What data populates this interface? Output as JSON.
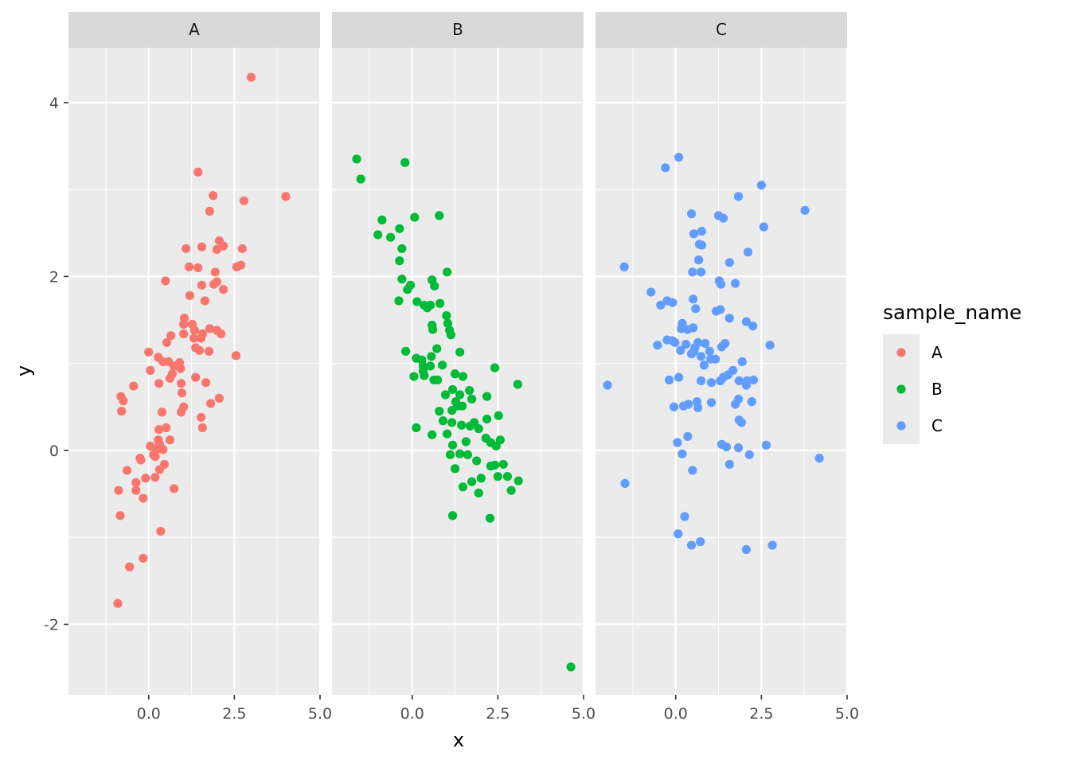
{
  "chart_data": {
    "type": "scatter",
    "xlabel": "x",
    "ylabel": "y",
    "xlim": [
      -2.34,
      5.0
    ],
    "ylim": [
      -2.81,
      4.63
    ],
    "x_ticks": [
      0,
      2.5,
      5
    ],
    "x_tick_labels": [
      "0.0",
      "2.5",
      "5.0"
    ],
    "x_minor_ticks": [
      -1.25,
      1.25,
      3.75
    ],
    "y_ticks": [
      -2,
      0,
      2,
      4
    ],
    "y_tick_labels": [
      "-2",
      "0",
      "2",
      "4"
    ],
    "y_minor_ticks": [
      -1,
      1,
      3
    ],
    "grid": true,
    "legend": {
      "title": "sample_name",
      "position": "right",
      "entries": [
        "A",
        "B",
        "C"
      ]
    },
    "facets": [
      {
        "label": "A",
        "color": "#F8766D",
        "points": [
          [
            2.99,
            4.29
          ],
          [
            4.0,
            2.92
          ],
          [
            1.44,
            3.2
          ],
          [
            1.88,
            2.93
          ],
          [
            2.78,
            2.87
          ],
          [
            1.78,
            2.75
          ],
          [
            2.06,
            2.41
          ],
          [
            2.18,
            2.35
          ],
          [
            2.73,
            2.32
          ],
          [
            1.55,
            2.34
          ],
          [
            1.09,
            2.32
          ],
          [
            1.99,
            2.31
          ],
          [
            1.18,
            2.11
          ],
          [
            1.44,
            2.1
          ],
          [
            2.69,
            2.13
          ],
          [
            2.57,
            2.11
          ],
          [
            1.94,
            2.05
          ],
          [
            0.49,
            1.95
          ],
          [
            1.99,
            1.94
          ],
          [
            1.9,
            1.91
          ],
          [
            1.55,
            1.9
          ],
          [
            2.18,
            1.85
          ],
          [
            1.2,
            1.78
          ],
          [
            1.64,
            1.72
          ],
          [
            1.04,
            1.52
          ],
          [
            1.27,
            1.45
          ],
          [
            1.02,
            1.45
          ],
          [
            1.78,
            1.4
          ],
          [
            1.99,
            1.38
          ],
          [
            0.65,
            1.32
          ],
          [
            1.34,
            1.38
          ],
          [
            1.57,
            1.34
          ],
          [
            2.11,
            1.34
          ],
          [
            1.02,
            1.34
          ],
          [
            1.32,
            1.29
          ],
          [
            1.53,
            1.29
          ],
          [
            0.53,
            1.24
          ],
          [
            1.37,
            1.18
          ],
          [
            1.48,
            1.15
          ],
          [
            1.76,
            1.14
          ],
          [
            0.0,
            1.13
          ],
          [
            2.55,
            1.09
          ],
          [
            0.28,
            1.07
          ],
          [
            0.58,
            1.02
          ],
          [
            0.42,
            1.02
          ],
          [
            0.9,
            1.01
          ],
          [
            0.74,
            0.97
          ],
          [
            0.93,
            0.94
          ],
          [
            0.05,
            0.92
          ],
          [
            0.69,
            0.88
          ],
          [
            0.62,
            0.83
          ],
          [
            1.37,
            0.84
          ],
          [
            -0.44,
            0.74
          ],
          [
            0.3,
            0.77
          ],
          [
            0.95,
            0.77
          ],
          [
            1.67,
            0.78
          ],
          [
            0.97,
            0.66
          ],
          [
            -0.81,
            0.62
          ],
          [
            -0.74,
            0.57
          ],
          [
            2.06,
            0.6
          ],
          [
            1.81,
            0.54
          ],
          [
            -0.79,
            0.45
          ],
          [
            0.39,
            0.44
          ],
          [
            0.95,
            0.44
          ],
          [
            1.02,
            0.5
          ],
          [
            1.53,
            0.38
          ],
          [
            0.3,
            0.24
          ],
          [
            0.51,
            0.26
          ],
          [
            1.57,
            0.26
          ],
          [
            0.62,
            0.12
          ],
          [
            0.28,
            0.12
          ],
          [
            0.32,
            0.07
          ],
          [
            0.05,
            0.05
          ],
          [
            0.42,
            0.01
          ],
          [
            0.21,
            0.0
          ],
          [
            0.14,
            -0.05
          ],
          [
            0.19,
            -0.07
          ],
          [
            -0.25,
            -0.09
          ],
          [
            -0.23,
            -0.11
          ],
          [
            0.46,
            -0.16
          ],
          [
            0.32,
            -0.22
          ],
          [
            -0.63,
            -0.23
          ],
          [
            0.19,
            -0.31
          ],
          [
            -0.09,
            -0.32
          ],
          [
            -0.37,
            -0.37
          ],
          [
            0.74,
            -0.44
          ],
          [
            -0.88,
            -0.46
          ],
          [
            -0.37,
            -0.46
          ],
          [
            -0.16,
            -0.55
          ],
          [
            -0.83,
            -0.75
          ],
          [
            0.35,
            -0.93
          ],
          [
            -0.16,
            -1.24
          ],
          [
            -0.56,
            -1.34
          ],
          [
            -0.9,
            -1.76
          ]
        ]
      },
      {
        "label": "B",
        "color": "#00BA38",
        "points": [
          [
            -1.62,
            3.35
          ],
          [
            -0.21,
            3.31
          ],
          [
            -1.5,
            3.12
          ],
          [
            -0.88,
            2.65
          ],
          [
            0.79,
            2.7
          ],
          [
            0.07,
            2.68
          ],
          [
            -0.37,
            2.55
          ],
          [
            -1.0,
            2.48
          ],
          [
            -0.63,
            2.45
          ],
          [
            -0.3,
            2.32
          ],
          [
            -0.37,
            2.18
          ],
          [
            1.02,
            2.05
          ],
          [
            -0.3,
            1.97
          ],
          [
            -0.05,
            1.9
          ],
          [
            0.58,
            1.96
          ],
          [
            0.65,
            1.89
          ],
          [
            -0.14,
            1.85
          ],
          [
            -0.39,
            1.72
          ],
          [
            0.14,
            1.71
          ],
          [
            0.81,
            1.69
          ],
          [
            0.35,
            1.67
          ],
          [
            0.53,
            1.67
          ],
          [
            0.44,
            1.64
          ],
          [
            1.0,
            1.55
          ],
          [
            1.04,
            1.46
          ],
          [
            0.58,
            1.44
          ],
          [
            0.6,
            1.39
          ],
          [
            1.09,
            1.38
          ],
          [
            1.13,
            1.33
          ],
          [
            0.72,
            1.17
          ],
          [
            -0.19,
            1.14
          ],
          [
            1.39,
            1.13
          ],
          [
            0.12,
            1.06
          ],
          [
            0.28,
            1.04
          ],
          [
            0.56,
            1.08
          ],
          [
            0.32,
            0.97
          ],
          [
            0.88,
            0.98
          ],
          [
            0.53,
            0.97
          ],
          [
            2.41,
            0.95
          ],
          [
            0.32,
            0.91
          ],
          [
            0.35,
            0.86
          ],
          [
            1.25,
            0.88
          ],
          [
            1.48,
            0.85
          ],
          [
            0.05,
            0.85
          ],
          [
            0.63,
            0.81
          ],
          [
            0.74,
            0.81
          ],
          [
            3.08,
            0.76
          ],
          [
            1.18,
            0.7
          ],
          [
            1.67,
            0.69
          ],
          [
            0.97,
            0.64
          ],
          [
            1.39,
            0.64
          ],
          [
            2.18,
            0.62
          ],
          [
            1.74,
            0.59
          ],
          [
            1.27,
            0.56
          ],
          [
            1.32,
            0.51
          ],
          [
            1.46,
            0.51
          ],
          [
            0.79,
            0.45
          ],
          [
            1.16,
            0.46
          ],
          [
            2.52,
            0.4
          ],
          [
            0.9,
            0.34
          ],
          [
            2.18,
            0.36
          ],
          [
            1.16,
            0.32
          ],
          [
            1.44,
            0.29
          ],
          [
            1.81,
            0.32
          ],
          [
            1.69,
            0.28
          ],
          [
            1.94,
            0.25
          ],
          [
            0.12,
            0.26
          ],
          [
            1.02,
            0.19
          ],
          [
            0.58,
            0.18
          ],
          [
            2.15,
            0.14
          ],
          [
            2.57,
            0.12
          ],
          [
            1.57,
            0.1
          ],
          [
            2.29,
            0.09
          ],
          [
            1.18,
            0.06
          ],
          [
            2.45,
            0.05
          ],
          [
            1.11,
            -0.05
          ],
          [
            1.39,
            -0.04
          ],
          [
            1.62,
            -0.05
          ],
          [
            1.88,
            -0.12
          ],
          [
            2.66,
            -0.16
          ],
          [
            2.41,
            -0.17
          ],
          [
            2.29,
            -0.18
          ],
          [
            1.25,
            -0.21
          ],
          [
            2.01,
            -0.32
          ],
          [
            2.5,
            -0.3
          ],
          [
            2.78,
            -0.3
          ],
          [
            3.1,
            -0.35
          ],
          [
            1.74,
            -0.36
          ],
          [
            1.48,
            -0.42
          ],
          [
            2.89,
            -0.46
          ],
          [
            1.94,
            -0.49
          ],
          [
            1.18,
            -0.75
          ],
          [
            2.27,
            -0.78
          ],
          [
            4.63,
            -2.49
          ]
        ]
      },
      {
        "label": "C",
        "color": "#619CFF",
        "points": [
          [
            0.09,
            3.37
          ],
          [
            -0.3,
            3.25
          ],
          [
            2.5,
            3.05
          ],
          [
            1.83,
            2.92
          ],
          [
            3.77,
            2.76
          ],
          [
            0.46,
            2.72
          ],
          [
            1.25,
            2.7
          ],
          [
            1.39,
            2.67
          ],
          [
            2.57,
            2.57
          ],
          [
            0.76,
            2.52
          ],
          [
            0.53,
            2.49
          ],
          [
            0.69,
            2.37
          ],
          [
            0.76,
            2.36
          ],
          [
            2.11,
            2.28
          ],
          [
            0.67,
            2.19
          ],
          [
            1.57,
            2.16
          ],
          [
            -1.5,
            2.11
          ],
          [
            0.49,
            2.05
          ],
          [
            0.74,
            2.05
          ],
          [
            1.27,
            1.95
          ],
          [
            1.32,
            1.91
          ],
          [
            1.74,
            1.92
          ],
          [
            -0.72,
            1.82
          ],
          [
            0.51,
            1.74
          ],
          [
            -0.25,
            1.72
          ],
          [
            -0.09,
            1.7
          ],
          [
            -0.44,
            1.67
          ],
          [
            0.58,
            1.63
          ],
          [
            1.3,
            1.62
          ],
          [
            1.18,
            1.6
          ],
          [
            1.57,
            1.52
          ],
          [
            2.06,
            1.48
          ],
          [
            0.19,
            1.46
          ],
          [
            2.25,
            1.43
          ],
          [
            0.51,
            1.41
          ],
          [
            0.16,
            1.4
          ],
          [
            0.35,
            1.39
          ],
          [
            -0.25,
            1.27
          ],
          [
            -0.09,
            1.26
          ],
          [
            -0.02,
            1.24
          ],
          [
            1.44,
            1.23
          ],
          [
            0.65,
            1.24
          ],
          [
            0.86,
            1.23
          ],
          [
            0.3,
            1.22
          ],
          [
            -0.53,
            1.21
          ],
          [
            2.75,
            1.21
          ],
          [
            1.34,
            1.19
          ],
          [
            0.56,
            1.18
          ],
          [
            0.14,
            1.15
          ],
          [
            0.53,
            1.14
          ],
          [
            0.99,
            1.14
          ],
          [
            0.46,
            1.11
          ],
          [
            0.74,
            1.08
          ],
          [
            1.02,
            1.05
          ],
          [
            1.16,
            1.05
          ],
          [
            1.94,
            1.02
          ],
          [
            0.83,
            0.98
          ],
          [
            1.67,
            0.92
          ],
          [
            1.53,
            0.87
          ],
          [
            1.39,
            0.84
          ],
          [
            0.09,
            0.84
          ],
          [
            -0.19,
            0.81
          ],
          [
            0.74,
            0.8
          ],
          [
            1.04,
            0.78
          ],
          [
            1.3,
            0.8
          ],
          [
            1.85,
            0.8
          ],
          [
            2.08,
            0.8
          ],
          [
            2.27,
            0.81
          ],
          [
            2.06,
            0.75
          ],
          [
            -1.99,
            0.75
          ],
          [
            1.83,
            0.59
          ],
          [
            0.62,
            0.56
          ],
          [
            0.37,
            0.53
          ],
          [
            1.04,
            0.55
          ],
          [
            2.22,
            0.56
          ],
          [
            1.74,
            0.53
          ],
          [
            -0.05,
            0.5
          ],
          [
            0.23,
            0.51
          ],
          [
            0.65,
            0.49
          ],
          [
            1.85,
            0.35
          ],
          [
            1.92,
            0.32
          ],
          [
            0.35,
            0.16
          ],
          [
            0.05,
            0.09
          ],
          [
            1.34,
            0.07
          ],
          [
            2.64,
            0.06
          ],
          [
            1.48,
            0.04
          ],
          [
            1.83,
            0.03
          ],
          [
            0.19,
            -0.04
          ],
          [
            2.15,
            -0.05
          ],
          [
            4.19,
            -0.09
          ],
          [
            1.57,
            -0.16
          ],
          [
            0.49,
            -0.23
          ],
          [
            -1.48,
            -0.38
          ],
          [
            0.26,
            -0.76
          ],
          [
            0.07,
            -0.96
          ],
          [
            0.72,
            -1.05
          ],
          [
            0.46,
            -1.09
          ],
          [
            2.82,
            -1.09
          ],
          [
            2.06,
            -1.14
          ]
        ]
      }
    ]
  }
}
